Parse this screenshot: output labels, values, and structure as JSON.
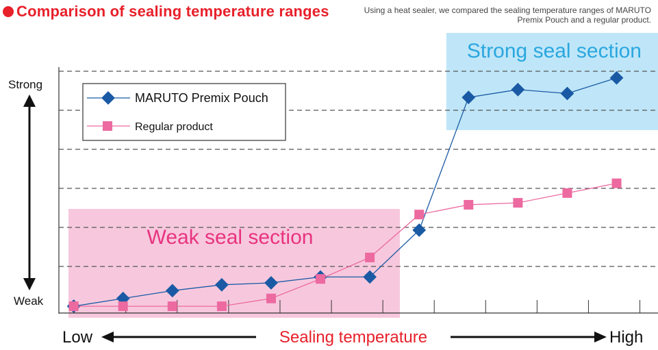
{
  "header": {
    "title": "Comparison of sealing temperature ranges",
    "subtitle": "Using a heat sealer, we compared the sealing temperature ranges of MARUTO Premix Pouch and a regular product."
  },
  "colors": {
    "title_red": "#e8202a",
    "series_blue": "#1a5aa5",
    "series_pink": "#ec6aa0",
    "strong_region": "#bfe6f8",
    "weak_region": "#f7c8dd",
    "strong_label": "#2aa7df",
    "weak_label": "#e8337f",
    "x_label": "#e8202a"
  },
  "chart_data": {
    "type": "line",
    "x": [
      1,
      2,
      3,
      4,
      5,
      6,
      7,
      8,
      9,
      10,
      11,
      12
    ],
    "xlim": [
      0.7,
      12.7
    ],
    "ylim": [
      0,
      6
    ],
    "grid": true,
    "legend": "top-left",
    "series": [
      {
        "name": "MARUTO Premix Pouch",
        "marker": "diamond",
        "values": [
          0.05,
          0.25,
          0.45,
          0.6,
          0.65,
          0.8,
          0.8,
          2.0,
          5.4,
          5.6,
          5.5,
          5.9
        ]
      },
      {
        "name": "Regular product",
        "marker": "square",
        "values": [
          0.05,
          0.05,
          0.05,
          0.05,
          0.25,
          0.75,
          1.3,
          2.4,
          2.65,
          2.7,
          2.95,
          3.2
        ]
      }
    ],
    "y_axis": {
      "top_label": "Strong",
      "bottom_label": "Weak"
    },
    "x_axis": {
      "left_label": "Low",
      "center_label": "Sealing temperature",
      "right_label": "High"
    },
    "regions": [
      {
        "label": "Strong seal section",
        "x_range": [
          8.55,
          12.7
        ],
        "y_range": [
          4.6,
          6.75
        ]
      },
      {
        "label": "Weak seal section",
        "x_range": [
          0.7,
          7.45
        ],
        "y_range": [
          -0.15,
          2.65
        ]
      }
    ]
  }
}
